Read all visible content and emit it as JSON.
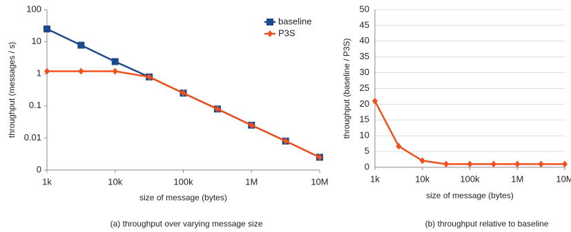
{
  "chart_data": [
    {
      "type": "line",
      "xscale": "log",
      "yscale": "log",
      "grid": false,
      "legend": "upper right",
      "xlabel": "size of message (bytes)",
      "ylabel": "throughput (messages / s)",
      "caption": "(a) throughput  over varying message size",
      "x": [
        1000,
        3162,
        10000,
        31623,
        100000,
        316228,
        1000000,
        3162278,
        10000000
      ],
      "xlim": [
        1000,
        10000000
      ],
      "xticks": [
        {
          "value": 1000,
          "label": "1k"
        },
        {
          "value": 10000,
          "label": "10k"
        },
        {
          "value": 100000,
          "label": "100k"
        },
        {
          "value": 1000000,
          "label": "1M"
        },
        {
          "value": 10000000,
          "label": "10M"
        }
      ],
      "ylim": [
        0.001,
        100
      ],
      "yticks": [
        {
          "value": 0.001,
          "label": "0"
        },
        0.01,
        0.1,
        1,
        10,
        100
      ],
      "series": [
        {
          "name": "baseline",
          "color": "#1b4a8c",
          "marker": "square",
          "values": [
            25,
            7.8,
            2.4,
            0.8,
            0.25,
            0.08,
            0.025,
            0.008,
            0.0025
          ]
        },
        {
          "name": "P3S",
          "color": "#f0501e",
          "marker": "diamond",
          "values": [
            1.2,
            1.2,
            1.2,
            0.8,
            0.25,
            0.08,
            0.025,
            0.008,
            0.0025
          ]
        }
      ]
    },
    {
      "type": "line",
      "xscale": "log",
      "yscale": "linear",
      "grid": true,
      "xlabel": "size of message (bytes)",
      "ylabel": "throughput (baseline / P3S)",
      "caption": "(b) throughput relative to baseline",
      "x": [
        1000,
        3162,
        10000,
        31623,
        100000,
        316228,
        1000000,
        3162278,
        10000000
      ],
      "xlim": [
        1000,
        10000000
      ],
      "xticks": [
        {
          "value": 1000,
          "label": "1k"
        },
        {
          "value": 10000,
          "label": "10k"
        },
        {
          "value": 100000,
          "label": "100k"
        },
        {
          "value": 1000000,
          "label": "1M"
        },
        {
          "value": 10000000,
          "label": "10M"
        }
      ],
      "ylim": [
        0,
        50
      ],
      "yticks": [
        0,
        5,
        10,
        15,
        20,
        25,
        30,
        35,
        40,
        45,
        50
      ],
      "series": [
        {
          "color": "#f0501e",
          "marker": "diamond",
          "values": [
            21,
            6.7,
            2.1,
            1,
            1,
            1,
            1,
            1,
            1
          ]
        }
      ]
    }
  ]
}
